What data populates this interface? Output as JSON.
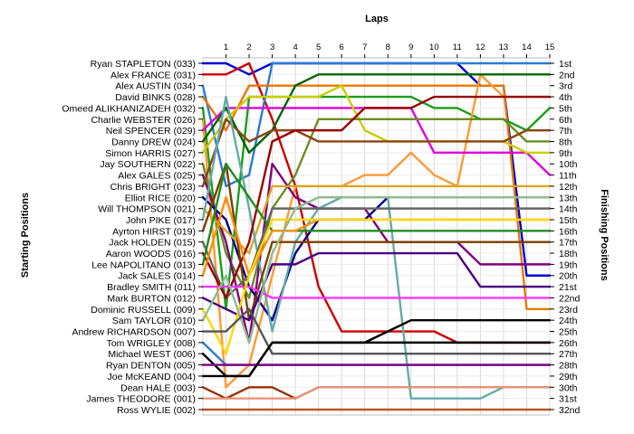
{
  "chart_data": {
    "type": "line",
    "title": "Laps",
    "ylabel_left": "Starting Positions",
    "ylabel_right": "Finishing Positions",
    "laps": [
      1,
      2,
      3,
      4,
      5,
      6,
      7,
      8,
      9,
      10,
      11,
      12,
      13,
      14,
      15
    ],
    "start_labels": [
      "Ryan STAPLETON (033)",
      "Alex FRANCE (031)",
      "Alex AUSTIN (034)",
      "David BINKS (028)",
      "Omeed ALIKHANIZADEH (032)",
      "Charlie WEBSTER (026)",
      "Neil SPENCER (029)",
      "Danny DREW (024)",
      "Simon HARRIS (027)",
      "Jay SOUTHERN (022)",
      "Alex GALES (025)",
      "Chris BRIGHT (023)",
      "Elliot RICE (020)",
      "Will THOMPSON (021)",
      "John PIKE (017)",
      "Ayrton HIRST (019)",
      "Jack HOLDEN (015)",
      "Aaron WOODS (016)",
      "Lee NAPOLITANO (013)",
      "Jack SALES (014)",
      "Bradley SMITH (011)",
      "Mark BURTON (012)",
      "Dominic RUSSELL (009)",
      "Sam TAYLOR (010)",
      "Andrew RICHARDSON (007)",
      "Tom WRIGLEY (008)",
      "Michael WEST (006)",
      "Ryan DENTON (005)",
      "Joe McKEAND (004)",
      "Dean HALE (003)",
      "James THEODORE (001)",
      "Ross WYLIE (002)"
    ],
    "finish_labels": [
      "1st",
      "2nd",
      "3rd",
      "4th",
      "5th",
      "6th",
      "7th",
      "8th",
      "9th",
      "10th",
      "11th",
      "12th",
      "13th",
      "14th",
      "15th",
      "16th",
      "17th",
      "18th",
      "19th",
      "20th",
      "21st",
      "22nd",
      "23rd",
      "24th",
      "25th",
      "26th",
      "27th",
      "28th",
      "29th",
      "30th",
      "31st",
      "32nd"
    ],
    "series": [
      {
        "color": "#0000cc",
        "values": [
          1,
          1,
          2,
          1,
          1,
          1,
          1,
          1,
          1,
          1,
          1,
          1,
          3,
          3,
          20,
          20
        ]
      },
      {
        "color": "#cc0000",
        "values": [
          2,
          2,
          1,
          6,
          12,
          21,
          25,
          25,
          25,
          25,
          25,
          26,
          26,
          26,
          26,
          26
        ]
      },
      {
        "color": "#2a7bd8",
        "values": [
          3,
          12,
          11,
          1,
          1,
          1,
          1,
          1,
          1,
          1,
          1,
          1,
          1,
          1,
          1,
          1
        ]
      },
      {
        "color": "#e87800",
        "values": [
          4,
          7,
          3,
          3,
          3,
          3,
          3,
          3,
          3,
          3,
          3,
          3,
          3,
          3,
          23,
          23
        ]
      },
      {
        "color": "#1a9e1a",
        "values": [
          5,
          23,
          4,
          4,
          4,
          4,
          4,
          4,
          4,
          4,
          5,
          5,
          6,
          6,
          7,
          5
        ]
      },
      {
        "color": "#ff9933",
        "values": [
          6,
          30,
          28,
          20,
          12,
          12,
          12,
          11,
          11,
          9,
          11,
          12,
          2,
          4,
          4,
          4
        ]
      },
      {
        "color": "#e000e0",
        "values": [
          7,
          5,
          5,
          5,
          5,
          5,
          5,
          5,
          5,
          5,
          9,
          9,
          9,
          9,
          9,
          11
        ]
      },
      {
        "color": "#006400",
        "values": [
          8,
          5,
          9,
          7,
          3,
          2,
          2,
          2,
          2,
          2,
          2,
          2,
          2,
          2,
          2,
          2
        ]
      },
      {
        "color": "#cccc00",
        "values": [
          9,
          6,
          4,
          4,
          4,
          4,
          3,
          7,
          8,
          8,
          8,
          8,
          8,
          8,
          9,
          9
        ]
      },
      {
        "color": "#6b8e23",
        "values": [
          10,
          18,
          22,
          14,
          11,
          6,
          6,
          6,
          6,
          6,
          6,
          6,
          6,
          6,
          8,
          8
        ]
      },
      {
        "color": "#800080",
        "values": [
          11,
          17,
          26,
          10,
          13,
          14,
          14,
          14,
          17,
          17,
          17,
          17,
          19,
          19,
          19,
          19
        ]
      },
      {
        "color": "#8b4513",
        "values": [
          12,
          6,
          8,
          7,
          7,
          8,
          8,
          8,
          8,
          8,
          8,
          8,
          8,
          8,
          7,
          7
        ]
      },
      {
        "color": "#00008b",
        "values": [
          13,
          15,
          21,
          24,
          18,
          15,
          15,
          15,
          13,
          13,
          13,
          13,
          13,
          13,
          13,
          13
        ]
      },
      {
        "color": "#daa520",
        "values": [
          14,
          16,
          18,
          12,
          12,
          12,
          12,
          12,
          12,
          12,
          12,
          12,
          12,
          12,
          12,
          12
        ]
      },
      {
        "color": "#66aaaa",
        "values": [
          15,
          4,
          14,
          25,
          17,
          14,
          13,
          13,
          13,
          31,
          31,
          31,
          31,
          30,
          30,
          30
        ]
      },
      {
        "color": "#7b3f00",
        "values": [
          16,
          10,
          24,
          17,
          17,
          17,
          17,
          17,
          17,
          17,
          17,
          17,
          17,
          17,
          17,
          17
        ]
      },
      {
        "color": "#666666",
        "values": [
          17,
          22,
          20,
          14,
          14,
          14,
          14,
          14,
          14,
          14,
          14,
          14,
          14,
          14,
          14,
          14
        ]
      },
      {
        "color": "#990000",
        "values": [
          18,
          22,
          17,
          8,
          7,
          7,
          7,
          5,
          5,
          5,
          4,
          4,
          4,
          4,
          4,
          4
        ]
      },
      {
        "color": "#228b22",
        "values": [
          19,
          10,
          13,
          16,
          16,
          16,
          16,
          16,
          16,
          16,
          16,
          16,
          16,
          16,
          16,
          16
        ]
      },
      {
        "color": "#ff8c00",
        "values": [
          20,
          13,
          20,
          16,
          16,
          15,
          15,
          15,
          15,
          15,
          15,
          15,
          15,
          15,
          15,
          15
        ]
      },
      {
        "color": "#ff33ff",
        "values": [
          21,
          21,
          21,
          22,
          22,
          22,
          22,
          22,
          22,
          22,
          22,
          22,
          22,
          22,
          22,
          22
        ]
      },
      {
        "color": "#4b0082",
        "values": [
          22,
          23,
          24,
          19,
          19,
          18,
          18,
          18,
          18,
          18,
          18,
          18,
          21,
          21,
          21,
          21
        ]
      },
      {
        "color": "#ffd700",
        "values": [
          23,
          27,
          20,
          15,
          15,
          15,
          15,
          15,
          15,
          15,
          15,
          15,
          15,
          15,
          15,
          15
        ]
      },
      {
        "color": "#8fbc8f",
        "values": [
          24,
          20,
          26,
          18,
          14,
          13,
          13,
          13,
          13,
          13,
          13,
          13,
          13,
          13,
          13,
          13
        ]
      },
      {
        "color": "#555555",
        "values": [
          25,
          25,
          23,
          27,
          27,
          27,
          27,
          27,
          27,
          27,
          27,
          27,
          27,
          27,
          27,
          27
        ]
      },
      {
        "color": "#2a7bd8",
        "values": [
          26,
          28,
          28,
          28,
          28,
          28,
          28,
          28,
          28,
          28,
          28,
          28,
          28,
          28,
          28,
          28
        ]
      },
      {
        "color": "#000000",
        "values": [
          27,
          29,
          29,
          26,
          26,
          26,
          26,
          26,
          25,
          24,
          24,
          24,
          24,
          24,
          24,
          24
        ]
      },
      {
        "color": "#800080",
        "values": [
          28,
          28,
          28,
          28,
          28,
          28,
          28,
          28,
          28,
          28,
          28,
          28,
          28,
          28,
          28,
          28
        ]
      },
      {
        "color": "#000000",
        "values": [
          29,
          29,
          29,
          26,
          26,
          26,
          26,
          26,
          26,
          26,
          26,
          26,
          26,
          26,
          26,
          26
        ]
      },
      {
        "color": "#993300",
        "values": [
          30,
          31,
          30,
          30,
          31,
          30,
          30,
          30,
          30,
          30,
          30,
          30,
          30,
          30,
          30,
          30
        ]
      },
      {
        "color": "#e9967a",
        "values": [
          31,
          31,
          31,
          31,
          31,
          30,
          30,
          30,
          30,
          30,
          30,
          30,
          30,
          30,
          30,
          30
        ]
      },
      {
        "color": "#c0541e",
        "values": [
          32,
          32,
          32,
          32,
          32,
          32,
          32,
          32,
          32,
          32,
          32,
          32,
          32,
          32,
          32,
          32
        ]
      }
    ],
    "grid": true
  }
}
